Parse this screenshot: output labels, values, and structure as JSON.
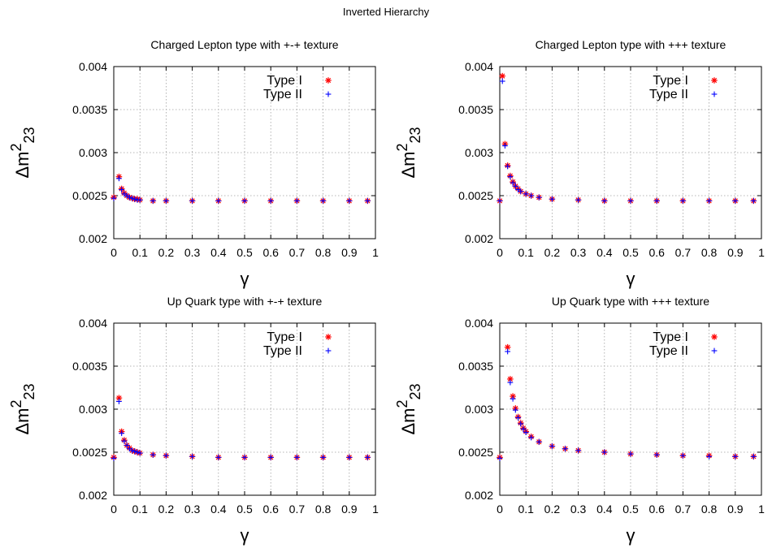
{
  "figure_title": "Inverted Hierarchy",
  "colors": {
    "type1": "#ff0000",
    "type2": "#0000ff",
    "grid": "#a0a0a0",
    "axis": "#000000"
  },
  "chart_data": [
    {
      "type": "scatter",
      "title": "Charged Lepton type with +-+ texture",
      "xlabel": "γ",
      "ylabel": "Δm²₂₃",
      "xlim": [
        0,
        1
      ],
      "ylim": [
        0.002,
        0.004
      ],
      "xticks": [
        "0",
        "0.1",
        "0.2",
        "0.3",
        "0.4",
        "0.5",
        "0.6",
        "0.7",
        "0.8",
        "0.9",
        "1"
      ],
      "yticks": [
        "0.002",
        "0.0025",
        "0.003",
        "0.0035",
        "0.004"
      ],
      "grid": true,
      "legend_position": "top-right",
      "series": [
        {
          "name": "Type I",
          "marker": "asterisk",
          "color": "#ff0000",
          "x": [
            0.0,
            0.02,
            0.03,
            0.04,
            0.05,
            0.06,
            0.07,
            0.08,
            0.09,
            0.1,
            0.15,
            0.2,
            0.3,
            0.4,
            0.5,
            0.6,
            0.7,
            0.8,
            0.9,
            0.97
          ],
          "y": [
            0.00248,
            0.00272,
            0.00258,
            0.00253,
            0.0025,
            0.00248,
            0.00247,
            0.00246,
            0.00246,
            0.00245,
            0.00244,
            0.00244,
            0.00244,
            0.00244,
            0.00244,
            0.00244,
            0.00244,
            0.00244,
            0.00244,
            0.00244
          ]
        },
        {
          "name": "Type II",
          "marker": "plus",
          "color": "#0000ff",
          "x": [
            0.0,
            0.02,
            0.03,
            0.04,
            0.05,
            0.06,
            0.07,
            0.08,
            0.09,
            0.1,
            0.15,
            0.2,
            0.3,
            0.4,
            0.5,
            0.6,
            0.7,
            0.8,
            0.9,
            0.97
          ],
          "y": [
            0.00247,
            0.0027,
            0.00257,
            0.00252,
            0.0025,
            0.00248,
            0.00247,
            0.00246,
            0.00245,
            0.00245,
            0.00244,
            0.00244,
            0.00244,
            0.00244,
            0.00244,
            0.00244,
            0.00244,
            0.00244,
            0.00244,
            0.00244
          ]
        }
      ]
    },
    {
      "type": "scatter",
      "title": "Charged Lepton type with +++ texture",
      "xlabel": "γ",
      "ylabel": "Δm²₂₃",
      "xlim": [
        0,
        1
      ],
      "ylim": [
        0.002,
        0.004
      ],
      "xticks": [
        "0",
        "0.1",
        "0.2",
        "0.3",
        "0.4",
        "0.5",
        "0.6",
        "0.7",
        "0.8",
        "0.9",
        "1"
      ],
      "yticks": [
        "0.002",
        "0.0025",
        "0.003",
        "0.0035",
        "0.004"
      ],
      "grid": true,
      "legend_position": "top-right",
      "series": [
        {
          "name": "Type I",
          "marker": "asterisk",
          "color": "#ff0000",
          "x": [
            0.0,
            0.01,
            0.02,
            0.03,
            0.04,
            0.05,
            0.06,
            0.07,
            0.08,
            0.1,
            0.12,
            0.15,
            0.2,
            0.3,
            0.4,
            0.5,
            0.6,
            0.7,
            0.8,
            0.9,
            0.97
          ],
          "y": [
            0.00244,
            0.00389,
            0.0031,
            0.00285,
            0.00273,
            0.00266,
            0.00261,
            0.00258,
            0.00255,
            0.00252,
            0.0025,
            0.00248,
            0.00246,
            0.00245,
            0.00244,
            0.00244,
            0.00244,
            0.00244,
            0.00244,
            0.00244,
            0.00244
          ]
        },
        {
          "name": "Type II",
          "marker": "plus",
          "color": "#0000ff",
          "x": [
            0.0,
            0.01,
            0.02,
            0.03,
            0.04,
            0.05,
            0.06,
            0.07,
            0.08,
            0.1,
            0.12,
            0.15,
            0.2,
            0.3,
            0.4,
            0.5,
            0.6,
            0.7,
            0.8,
            0.9,
            0.97
          ],
          "y": [
            0.00244,
            0.00383,
            0.00308,
            0.00284,
            0.00272,
            0.00265,
            0.00261,
            0.00257,
            0.00255,
            0.00252,
            0.0025,
            0.00248,
            0.00246,
            0.00245,
            0.00244,
            0.00244,
            0.00244,
            0.00244,
            0.00244,
            0.00244,
            0.00244
          ]
        }
      ]
    },
    {
      "type": "scatter",
      "title": "Up Quark type with +-+ texture",
      "xlabel": "γ",
      "ylabel": "Δm²₂₃",
      "xlim": [
        0,
        1
      ],
      "ylim": [
        0.002,
        0.004
      ],
      "xticks": [
        "0",
        "0.1",
        "0.2",
        "0.3",
        "0.4",
        "0.5",
        "0.6",
        "0.7",
        "0.8",
        "0.9",
        "1"
      ],
      "yticks": [
        "0.002",
        "0.0025",
        "0.003",
        "0.0035",
        "0.004"
      ],
      "grid": true,
      "legend_position": "top-right",
      "series": [
        {
          "name": "Type I",
          "marker": "asterisk",
          "color": "#ff0000",
          "x": [
            0.0,
            0.02,
            0.03,
            0.04,
            0.05,
            0.06,
            0.07,
            0.08,
            0.09,
            0.1,
            0.15,
            0.2,
            0.3,
            0.4,
            0.5,
            0.6,
            0.7,
            0.8,
            0.9,
            0.97
          ],
          "y": [
            0.00244,
            0.00313,
            0.00274,
            0.00264,
            0.00258,
            0.00255,
            0.00252,
            0.00251,
            0.0025,
            0.00249,
            0.00247,
            0.00246,
            0.00245,
            0.00244,
            0.00244,
            0.00244,
            0.00244,
            0.00244,
            0.00244,
            0.00244
          ]
        },
        {
          "name": "Type II",
          "marker": "plus",
          "color": "#0000ff",
          "x": [
            0.0,
            0.02,
            0.03,
            0.04,
            0.05,
            0.06,
            0.07,
            0.08,
            0.09,
            0.1,
            0.15,
            0.2,
            0.3,
            0.4,
            0.5,
            0.6,
            0.7,
            0.8,
            0.9,
            0.97
          ],
          "y": [
            0.00243,
            0.00309,
            0.00272,
            0.00263,
            0.00258,
            0.00254,
            0.00252,
            0.00251,
            0.0025,
            0.00249,
            0.00247,
            0.00246,
            0.00245,
            0.00244,
            0.00244,
            0.00244,
            0.00244,
            0.00244,
            0.00244,
            0.00244
          ]
        }
      ]
    },
    {
      "type": "scatter",
      "title": "Up Quark type with +++ texture",
      "xlabel": "γ",
      "ylabel": "Δm²₂₃",
      "xlim": [
        0,
        1
      ],
      "ylim": [
        0.002,
        0.004
      ],
      "xticks": [
        "0",
        "0.1",
        "0.2",
        "0.3",
        "0.4",
        "0.5",
        "0.6",
        "0.7",
        "0.8",
        "0.9",
        "1"
      ],
      "yticks": [
        "0.002",
        "0.0025",
        "0.003",
        "0.0035",
        "0.004"
      ],
      "grid": true,
      "legend_position": "top-right",
      "series": [
        {
          "name": "Type I",
          "marker": "asterisk",
          "color": "#ff0000",
          "x": [
            0.0,
            0.03,
            0.04,
            0.05,
            0.06,
            0.07,
            0.08,
            0.09,
            0.1,
            0.12,
            0.15,
            0.2,
            0.25,
            0.3,
            0.4,
            0.5,
            0.6,
            0.7,
            0.8,
            0.9,
            0.97
          ],
          "y": [
            0.00244,
            0.00372,
            0.00335,
            0.00315,
            0.00301,
            0.00291,
            0.00284,
            0.00278,
            0.00274,
            0.00268,
            0.00262,
            0.00257,
            0.00254,
            0.00252,
            0.0025,
            0.00248,
            0.00247,
            0.00246,
            0.00246,
            0.00245,
            0.00245
          ]
        },
        {
          "name": "Type II",
          "marker": "plus",
          "color": "#0000ff",
          "x": [
            0.0,
            0.03,
            0.04,
            0.05,
            0.06,
            0.07,
            0.08,
            0.09,
            0.1,
            0.12,
            0.15,
            0.2,
            0.25,
            0.3,
            0.4,
            0.5,
            0.6,
            0.7,
            0.8,
            0.9,
            0.97
          ],
          "y": [
            0.00243,
            0.00367,
            0.00331,
            0.00312,
            0.00299,
            0.0029,
            0.00283,
            0.00277,
            0.00273,
            0.00267,
            0.00262,
            0.00257,
            0.00254,
            0.00252,
            0.0025,
            0.00248,
            0.00247,
            0.00246,
            0.00245,
            0.00245,
            0.00245
          ]
        }
      ]
    }
  ]
}
